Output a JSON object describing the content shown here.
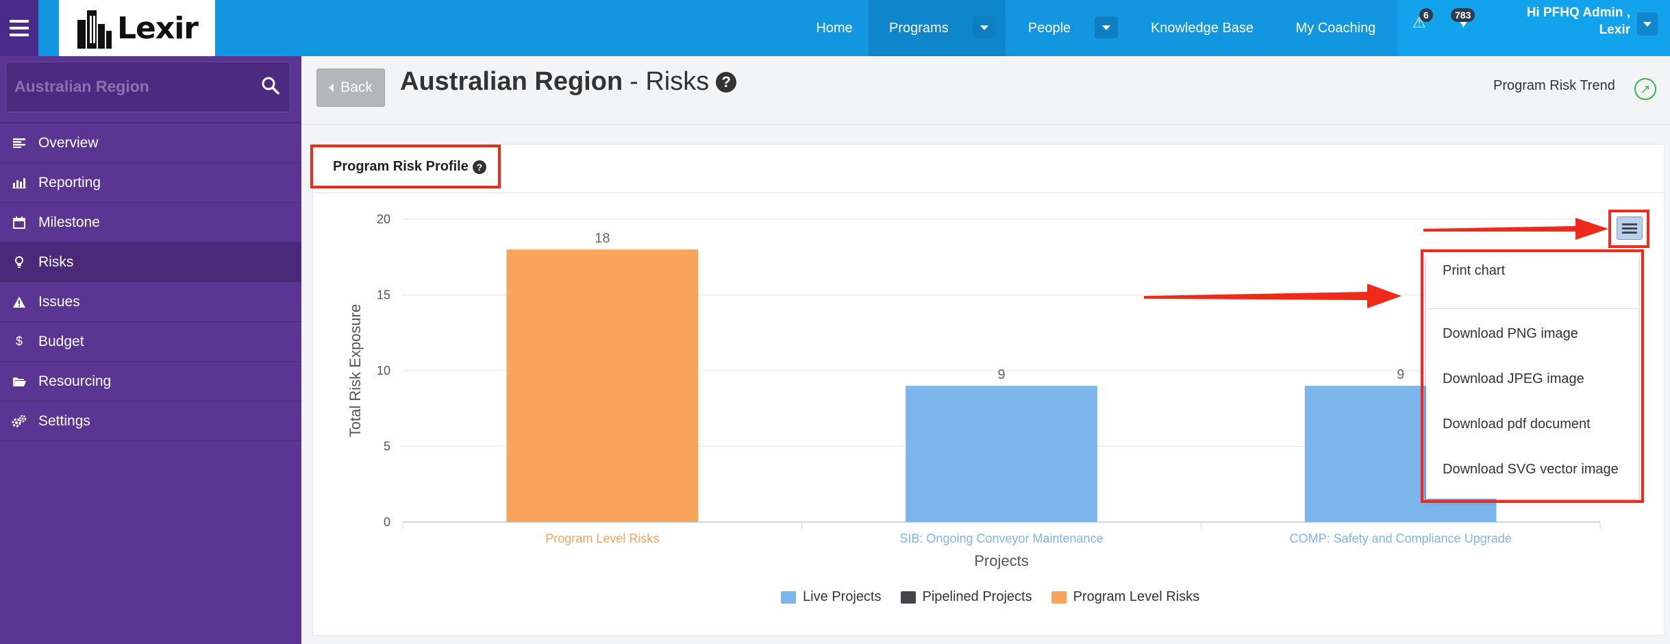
{
  "topbar": {
    "logo": "Lexir",
    "nav": {
      "home": "Home",
      "programs": "Programs",
      "people": "People",
      "knowledge_base": "Knowledge Base",
      "my_coaching": "My Coaching"
    },
    "alerts_count": "6",
    "messages_count": "783",
    "user_line1": "Hi PFHQ Admin ,",
    "user_line2": "Lexir"
  },
  "sidebar": {
    "search_label": "Australian Region",
    "items": [
      {
        "label": "Overview",
        "icon": "list-icon"
      },
      {
        "label": "Reporting",
        "icon": "bar-chart-icon"
      },
      {
        "label": "Milestone",
        "icon": "calendar-icon"
      },
      {
        "label": "Risks",
        "icon": "lightbulb-icon",
        "active": true
      },
      {
        "label": "Issues",
        "icon": "warning-icon"
      },
      {
        "label": "Budget",
        "icon": "dollar-icon"
      },
      {
        "label": "Resourcing",
        "icon": "folder-icon"
      },
      {
        "label": "Settings",
        "icon": "gears-icon"
      }
    ]
  },
  "header": {
    "back": "Back",
    "title_strong": "Australian Region",
    "title_rest": "- Risks",
    "trend": "Program Risk Trend"
  },
  "panel": {
    "title": "Program Risk Profile"
  },
  "export_menu": {
    "print": "Print chart",
    "png": "Download PNG image",
    "jpeg": "Download JPEG image",
    "pdf": "Download pdf document",
    "svg": "Download SVG vector image"
  },
  "colors": {
    "orange": "#f8a45a",
    "blue": "#7cb5ec",
    "dark": "#434348"
  },
  "chart_data": {
    "type": "bar",
    "categories": [
      "Program Level Risks",
      "SIB: Ongoing Conveyor Maintenance",
      "COMP: Safety and Compliance Upgrade"
    ],
    "values": [
      18,
      9,
      9
    ],
    "bar_series": [
      "Program Level Risks",
      "Live Projects",
      "Live Projects"
    ],
    "xlabel": "Projects",
    "ylabel": "Total Risk Exposure",
    "ylim": [
      0,
      20
    ],
    "yticks": [
      0,
      5,
      10,
      15,
      20
    ],
    "legend": [
      {
        "name": "Live Projects",
        "color": "#7cb5ec"
      },
      {
        "name": "Pipelined Projects",
        "color": "#434348"
      },
      {
        "name": "Program Level Risks",
        "color": "#f8a45a"
      }
    ],
    "legend_position": "bottom-center",
    "grid": true
  }
}
